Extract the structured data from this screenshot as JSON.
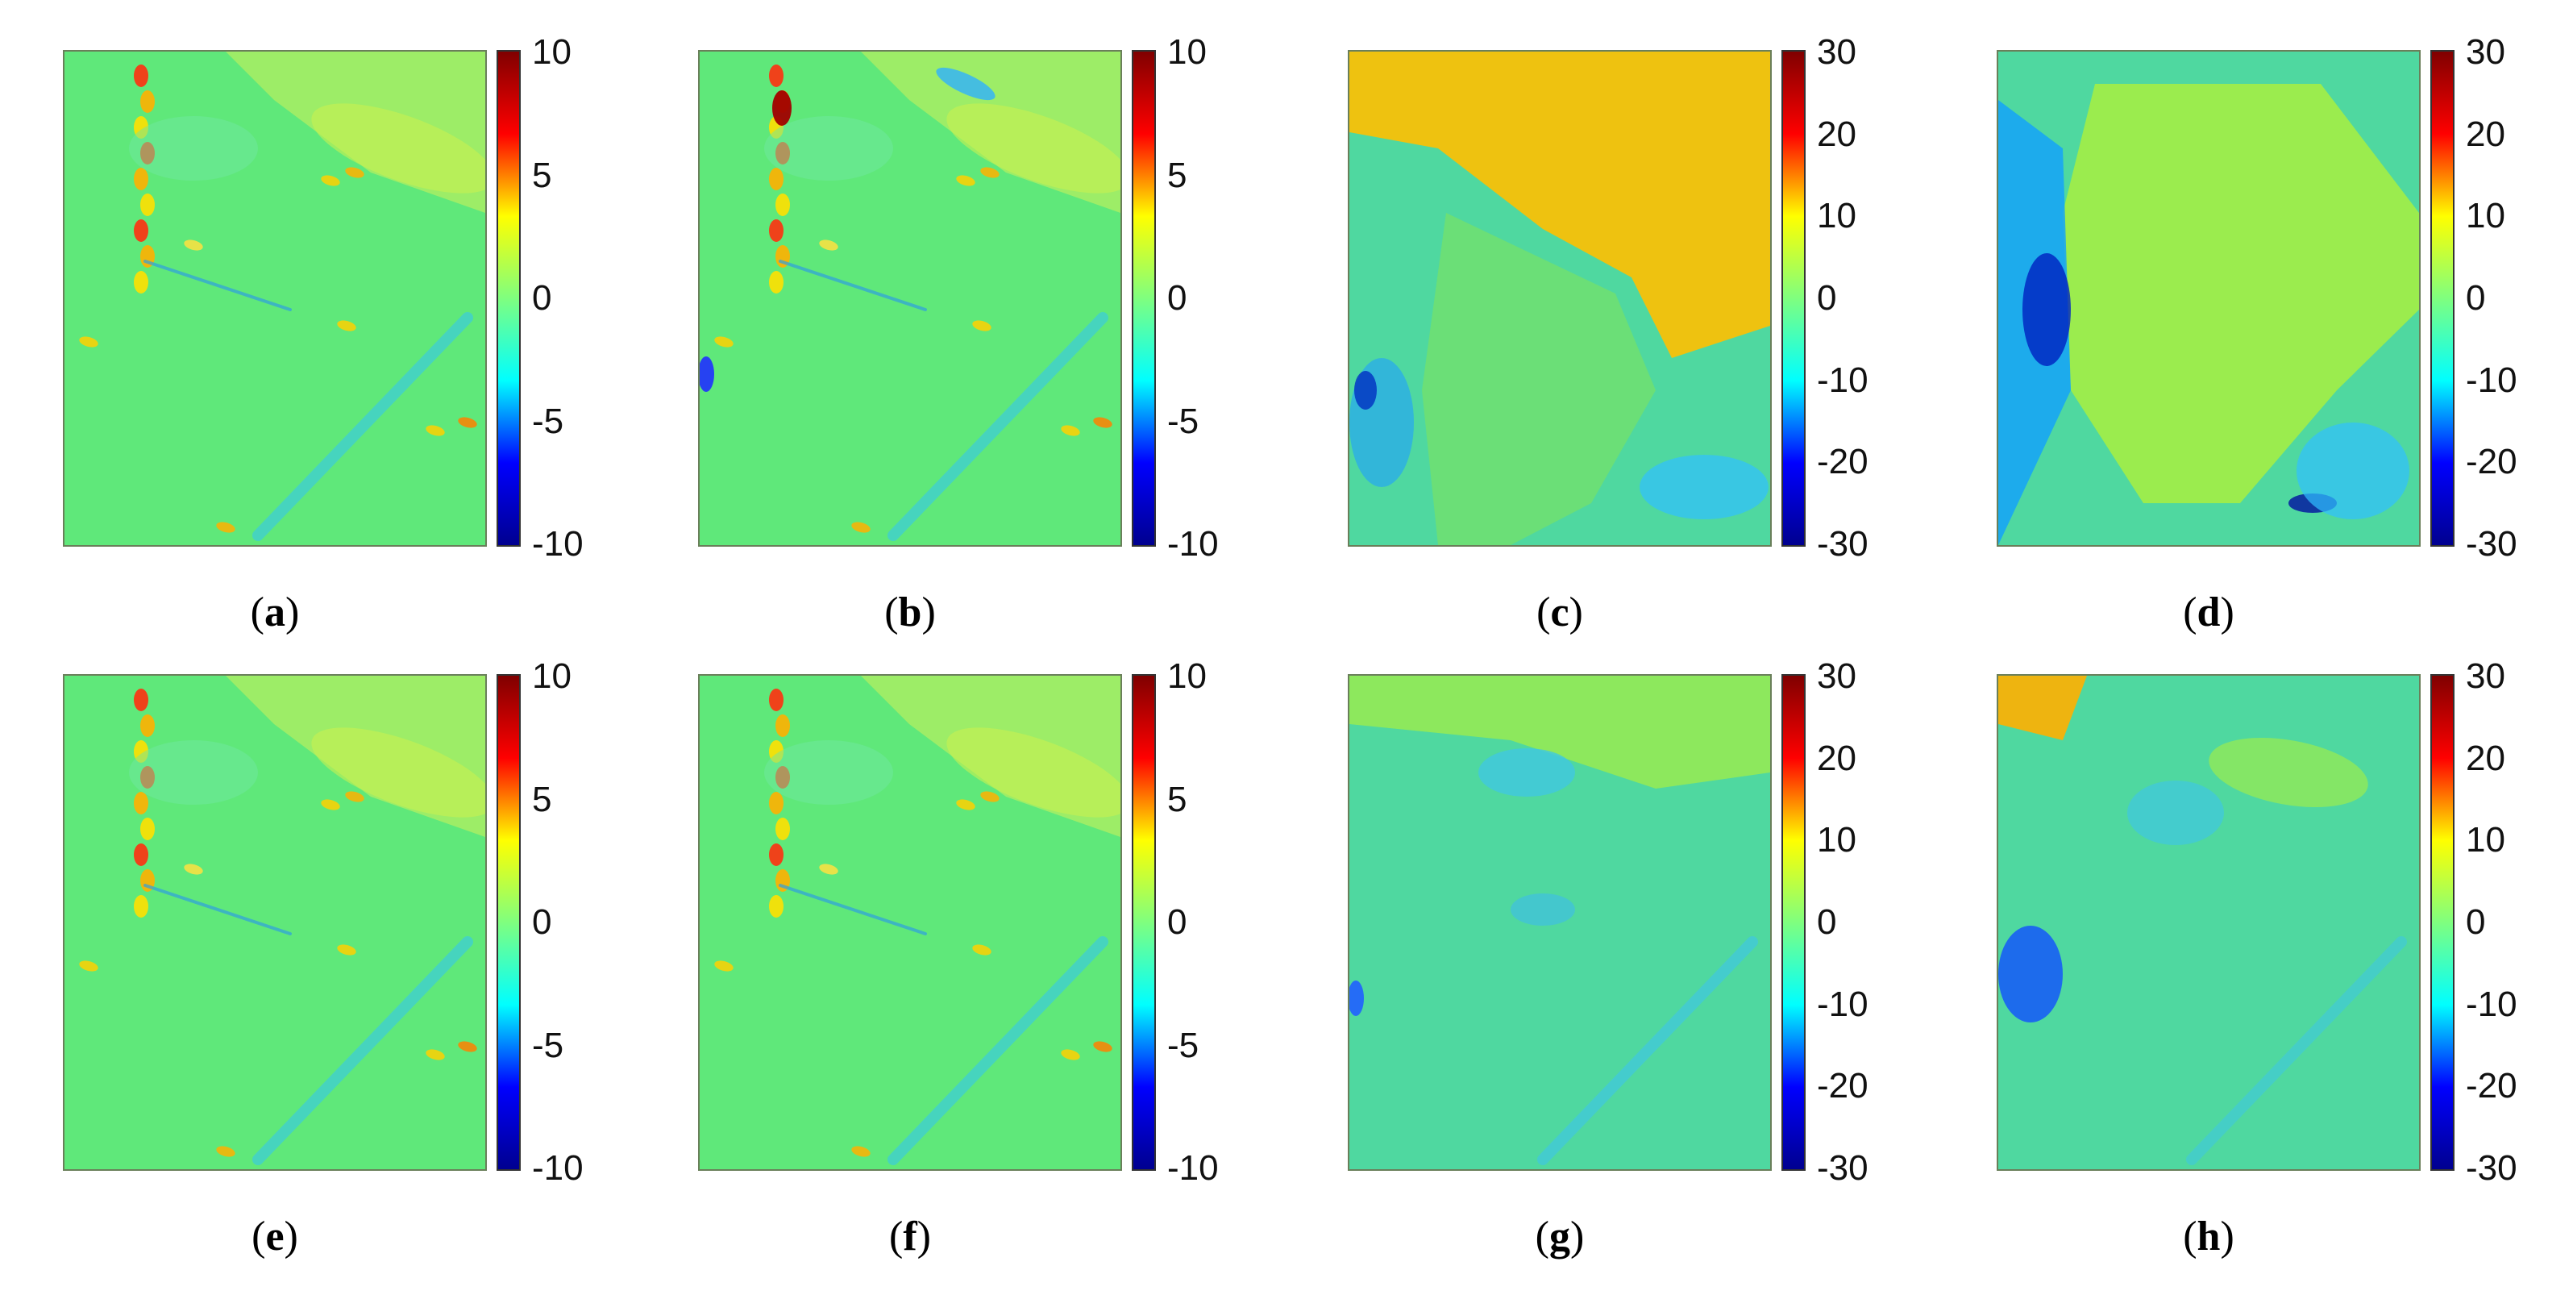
{
  "chart_data": [
    {
      "type": "heatmap",
      "panel_label": "a",
      "colorbar_ticks": [
        10,
        5,
        0,
        -5,
        -10
      ],
      "colorbar_range": [
        -10,
        10
      ],
      "colormap": "jet"
    },
    {
      "type": "heatmap",
      "panel_label": "b",
      "colorbar_ticks": [
        10,
        5,
        0,
        -5,
        -10
      ],
      "colorbar_range": [
        -10,
        10
      ],
      "colormap": "jet"
    },
    {
      "type": "heatmap",
      "panel_label": "c",
      "colorbar_ticks": [
        30,
        20,
        10,
        0,
        -10,
        -20,
        -30
      ],
      "colorbar_range": [
        -30,
        30
      ],
      "colormap": "jet"
    },
    {
      "type": "heatmap",
      "panel_label": "d",
      "colorbar_ticks": [
        30,
        20,
        10,
        0,
        -10,
        -20,
        -30
      ],
      "colorbar_range": [
        -30,
        30
      ],
      "colormap": "jet"
    },
    {
      "type": "heatmap",
      "panel_label": "e",
      "colorbar_ticks": [
        10,
        5,
        0,
        -5,
        -10
      ],
      "colorbar_range": [
        -10,
        10
      ],
      "colormap": "jet"
    },
    {
      "type": "heatmap",
      "panel_label": "f",
      "colorbar_ticks": [
        10,
        5,
        0,
        -5,
        -10
      ],
      "colorbar_range": [
        -10,
        10
      ],
      "colormap": "jet"
    },
    {
      "type": "heatmap",
      "panel_label": "g",
      "colorbar_ticks": [
        30,
        20,
        10,
        0,
        -10,
        -20,
        -30
      ],
      "colorbar_range": [
        -30,
        30
      ],
      "colormap": "jet"
    },
    {
      "type": "heatmap",
      "panel_label": "h",
      "colorbar_ticks": [
        30,
        20,
        10,
        0,
        -10,
        -20,
        -30
      ],
      "colorbar_range": [
        -30,
        30
      ],
      "colormap": "jet"
    }
  ],
  "colors": {
    "jet_stops": [
      "#00008f",
      "#0000ff",
      "#00ffff",
      "#7fff7f",
      "#ffff00",
      "#ff0000",
      "#800000"
    ],
    "map_background_small_range": "#5fe87a",
    "map_background_large_range": "#4fd8a0"
  }
}
